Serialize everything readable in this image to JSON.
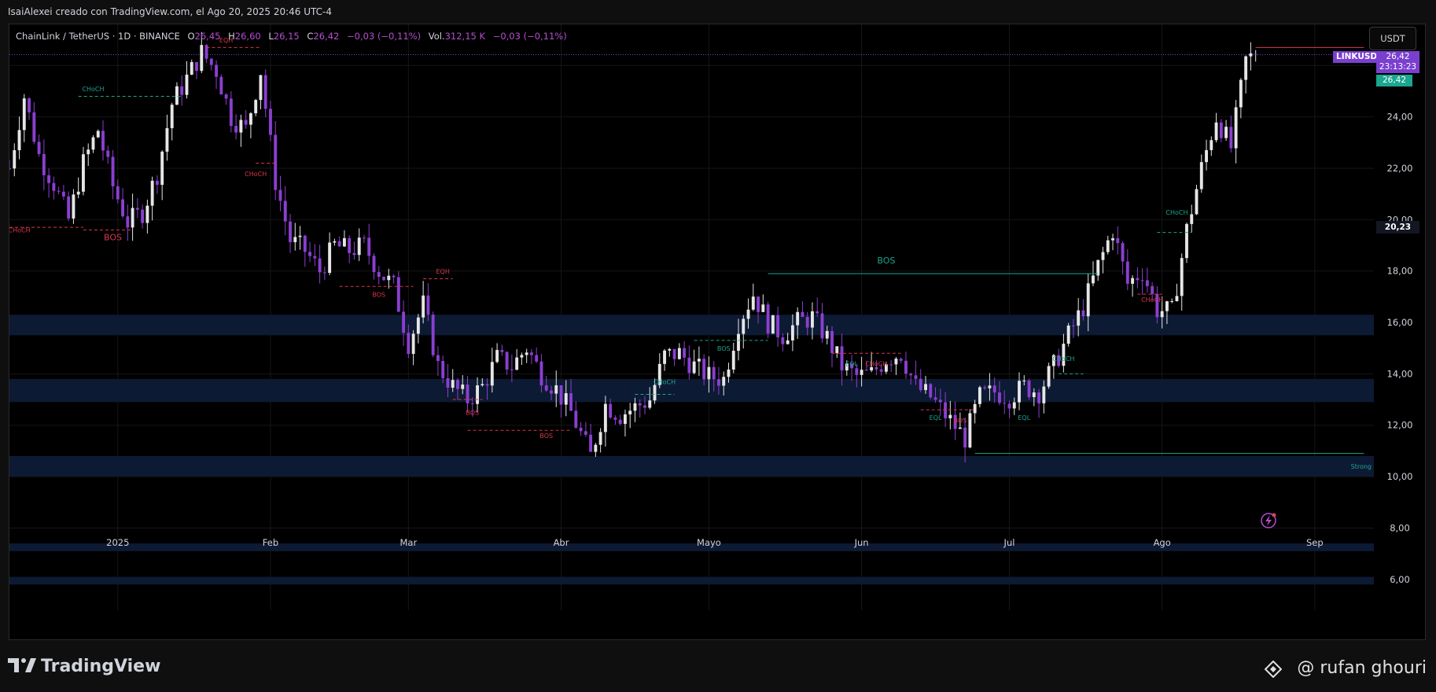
{
  "header": {
    "attribution": "IsaiAlexei creado con TradingView.com, el Ago 20, 2025 20:46 UTC-4"
  },
  "legend": {
    "symbol": "ChainLink / TetherUS · 1D · BINANCE",
    "open_label": "O",
    "open": "26,45",
    "high_label": "H",
    "high": "26,60",
    "low_label": "L",
    "low": "26,15",
    "close_label": "C",
    "close": "26,42",
    "change": "−0,03 (−0,11%)",
    "vol_label": "Vol.",
    "vol": "312,15 K",
    "vol_change": "−0,03 (−0,11%)"
  },
  "currency_button": "USDT",
  "price_scale": {
    "ticker": "LINKUSDT",
    "last_price": "26,42",
    "countdown": "23:13:23",
    "current": "26,42",
    "marker": "20,23"
  },
  "footer": {
    "brand": "TradingView",
    "credit": "@ rufan ghouri"
  },
  "colors": {
    "bull": "#e6e6e6",
    "bear": "#8a3fd1",
    "zone": "#0d1a33",
    "bos_green": "#1aa68f",
    "bos_red": "#d9364a"
  },
  "chart_data": {
    "type": "candlestick",
    "title": "ChainLink / TetherUS · 1D · BINANCE",
    "ylim": [
      4.8,
      27.6
    ],
    "y_ticks": [
      6,
      8,
      10,
      12,
      14,
      16,
      18,
      20,
      22,
      24,
      26
    ],
    "y_tick_labels": [
      "6,00",
      "8,00",
      "10,00",
      "12,00",
      "14,00",
      "16,00",
      "18,00",
      "20,00",
      "22,00",
      "24,00",
      "26,00"
    ],
    "x_start": "2024-12-10",
    "x_end": "2025-09-13",
    "x_ticks": [
      {
        "date": "2025-01-01",
        "label": "2025"
      },
      {
        "date": "2025-02-01",
        "label": "Feb"
      },
      {
        "date": "2025-03-01",
        "label": "Mar"
      },
      {
        "date": "2025-04-01",
        "label": "Abr"
      },
      {
        "date": "2025-05-01",
        "label": "Mayo"
      },
      {
        "date": "2025-06-01",
        "label": "Jun"
      },
      {
        "date": "2025-07-01",
        "label": "Jul"
      },
      {
        "date": "2025-08-01",
        "label": "Ago"
      },
      {
        "date": "2025-09-01",
        "label": "Sep"
      }
    ],
    "series_close_path": [
      [
        "2024-12-10",
        22.0
      ],
      [
        "2024-12-13",
        24.8
      ],
      [
        "2024-12-16",
        22.5
      ],
      [
        "2024-12-19",
        21.4
      ],
      [
        "2024-12-22",
        20.0
      ],
      [
        "2024-12-25",
        22.2
      ],
      [
        "2024-12-28",
        23.5
      ],
      [
        "2024-12-31",
        21.3
      ],
      [
        "2025-01-03",
        19.9
      ],
      [
        "2025-01-06",
        20.3
      ],
      [
        "2025-01-09",
        21.8
      ],
      [
        "2025-01-12",
        24.5
      ],
      [
        "2025-01-15",
        25.5
      ],
      [
        "2025-01-18",
        26.5
      ],
      [
        "2025-01-21",
        25.8
      ],
      [
        "2025-01-24",
        24.0
      ],
      [
        "2025-01-27",
        23.5
      ],
      [
        "2025-01-30",
        25.8
      ],
      [
        "2025-02-02",
        21.5
      ],
      [
        "2025-02-05",
        19.2
      ],
      [
        "2025-02-08",
        18.8
      ],
      [
        "2025-02-11",
        18.0
      ],
      [
        "2025-02-14",
        19.0
      ],
      [
        "2025-02-17",
        18.8
      ],
      [
        "2025-02-20",
        19.0
      ],
      [
        "2025-02-23",
        18.0
      ],
      [
        "2025-02-26",
        17.4
      ],
      [
        "2025-03-01",
        15.2
      ],
      [
        "2025-03-04",
        16.7
      ],
      [
        "2025-03-07",
        14.3
      ],
      [
        "2025-03-10",
        13.5
      ],
      [
        "2025-03-13",
        13.0
      ],
      [
        "2025-03-16",
        13.5
      ],
      [
        "2025-03-19",
        14.6
      ],
      [
        "2025-03-22",
        14.3
      ],
      [
        "2025-03-25",
        15.0
      ],
      [
        "2025-03-28",
        14.0
      ],
      [
        "2025-03-31",
        13.4
      ],
      [
        "2025-04-03",
        12.5
      ],
      [
        "2025-04-07",
        10.8
      ],
      [
        "2025-04-10",
        12.8
      ],
      [
        "2025-04-13",
        12.4
      ],
      [
        "2025-04-16",
        12.7
      ],
      [
        "2025-04-19",
        13.0
      ],
      [
        "2025-04-22",
        14.7
      ],
      [
        "2025-04-25",
        14.8
      ],
      [
        "2025-04-28",
        14.3
      ],
      [
        "2025-05-01",
        13.9
      ],
      [
        "2025-05-04",
        13.8
      ],
      [
        "2025-05-07",
        16.0
      ],
      [
        "2025-05-10",
        17.1
      ],
      [
        "2025-05-13",
        16.0
      ],
      [
        "2025-05-16",
        15.5
      ],
      [
        "2025-05-19",
        16.0
      ],
      [
        "2025-05-22",
        16.2
      ],
      [
        "2025-05-25",
        15.4
      ],
      [
        "2025-05-28",
        14.3
      ],
      [
        "2025-05-31",
        13.9
      ],
      [
        "2025-06-03",
        14.0
      ],
      [
        "2025-06-06",
        14.6
      ],
      [
        "2025-06-09",
        14.8
      ],
      [
        "2025-06-12",
        13.5
      ],
      [
        "2025-06-15",
        13.1
      ],
      [
        "2025-06-18",
        12.4
      ],
      [
        "2025-06-22",
        11.5
      ],
      [
        "2025-06-25",
        13.1
      ],
      [
        "2025-06-28",
        13.3
      ],
      [
        "2025-07-01",
        13.1
      ],
      [
        "2025-07-04",
        13.5
      ],
      [
        "2025-07-07",
        13.3
      ],
      [
        "2025-07-10",
        14.3
      ],
      [
        "2025-07-13",
        15.5
      ],
      [
        "2025-07-16",
        16.6
      ],
      [
        "2025-07-19",
        18.2
      ],
      [
        "2025-07-22",
        19.6
      ],
      [
        "2025-07-25",
        17.5
      ],
      [
        "2025-07-28",
        18.0
      ],
      [
        "2025-07-31",
        16.5
      ],
      [
        "2025-08-03",
        16.4
      ],
      [
        "2025-08-06",
        19.6
      ],
      [
        "2025-08-09",
        22.0
      ],
      [
        "2025-08-12",
        24.0
      ],
      [
        "2025-08-15",
        22.8
      ],
      [
        "2025-08-18",
        26.2
      ],
      [
        "2025-08-20",
        26.42
      ]
    ],
    "demand_zones": [
      {
        "from": 10.0,
        "to": 10.8,
        "label": "Strong"
      },
      {
        "from": 12.9,
        "to": 13.8,
        "label": ""
      },
      {
        "from": 15.5,
        "to": 16.3,
        "label": ""
      },
      {
        "from": 7.1,
        "to": 7.4,
        "label": ""
      },
      {
        "from": 5.8,
        "to": 6.1,
        "label": ""
      }
    ],
    "annotations": [
      {
        "text": "EQH",
        "date": "2025-01-23",
        "price": 26.9,
        "color": "red"
      },
      {
        "text": "CHoCH",
        "date": "2024-12-27",
        "price": 25.0,
        "color": "green"
      },
      {
        "text": "CHoCH",
        "date": "2024-12-12",
        "price": 19.5,
        "color": "red"
      },
      {
        "text": "BOS",
        "date": "2024-12-31",
        "price": 19.2,
        "color": "red"
      },
      {
        "text": "CHoCH",
        "date": "2025-01-29",
        "price": 21.7,
        "color": "red"
      },
      {
        "text": "BOS",
        "date": "2025-02-23",
        "price": 17.0,
        "color": "red"
      },
      {
        "text": "EQH",
        "date": "2025-03-08",
        "price": 17.9,
        "color": "red"
      },
      {
        "text": "BOS",
        "date": "2025-03-14",
        "price": 12.4,
        "color": "red"
      },
      {
        "text": "BOS",
        "date": "2025-03-29",
        "price": 11.5,
        "color": "red"
      },
      {
        "text": "CHoCH",
        "date": "2025-04-22",
        "price": 13.6,
        "color": "green"
      },
      {
        "text": "BOS",
        "date": "2025-05-04",
        "price": 14.9,
        "color": "green"
      },
      {
        "text": "BOS",
        "date": "2025-06-06",
        "price": 18.3,
        "color": "green"
      },
      {
        "text": "EQL",
        "date": "2025-05-30",
        "price": 14.3,
        "color": "green"
      },
      {
        "text": "CHoCH",
        "date": "2025-06-04",
        "price": 14.3,
        "color": "red"
      },
      {
        "text": "EQL",
        "date": "2025-06-16",
        "price": 12.2,
        "color": "green"
      },
      {
        "text": "BOS",
        "date": "2025-06-21",
        "price": 12.1,
        "color": "red"
      },
      {
        "text": "EQL",
        "date": "2025-07-04",
        "price": 12.2,
        "color": "green"
      },
      {
        "text": "CHoCH",
        "date": "2025-07-12",
        "price": 14.5,
        "color": "green"
      },
      {
        "text": "CHoCH",
        "date": "2025-08-04",
        "price": 20.2,
        "color": "green"
      },
      {
        "text": "CHoCH",
        "date": "2025-07-30",
        "price": 16.8,
        "color": "red"
      }
    ],
    "levels": [
      {
        "price": 24.8,
        "from": "2024-12-24",
        "to": "2025-01-14",
        "color": "green"
      },
      {
        "price": 19.7,
        "from": "2024-12-10",
        "to": "2024-12-25",
        "color": "red"
      },
      {
        "price": 19.6,
        "from": "2024-12-25",
        "to": "2025-01-04",
        "color": "red"
      },
      {
        "price": 26.7,
        "from": "2025-01-19",
        "to": "2025-01-30",
        "color": "red"
      },
      {
        "price": 22.2,
        "from": "2025-01-29",
        "to": "2025-02-02",
        "color": "red"
      },
      {
        "price": 17.4,
        "from": "2025-02-15",
        "to": "2025-03-02",
        "color": "red"
      },
      {
        "price": 17.7,
        "from": "2025-03-04",
        "to": "2025-03-10",
        "color": "red"
      },
      {
        "price": 13.0,
        "from": "2025-03-10",
        "to": "2025-03-16",
        "color": "red"
      },
      {
        "price": 11.8,
        "from": "2025-03-13",
        "to": "2025-04-03",
        "color": "red"
      },
      {
        "price": 13.2,
        "from": "2025-04-16",
        "to": "2025-04-24",
        "color": "green"
      },
      {
        "price": 15.3,
        "from": "2025-04-28",
        "to": "2025-05-13",
        "color": "green"
      },
      {
        "price": 17.9,
        "from": "2025-05-13",
        "to": "2025-07-19",
        "color": "green"
      },
      {
        "price": 14.8,
        "from": "2025-05-26",
        "to": "2025-06-09",
        "color": "red"
      },
      {
        "price": 12.6,
        "from": "2025-06-13",
        "to": "2025-06-24",
        "color": "red"
      },
      {
        "price": 14.0,
        "from": "2025-07-11",
        "to": "2025-07-16",
        "color": "green"
      },
      {
        "price": 19.5,
        "from": "2025-07-31",
        "to": "2025-08-07",
        "color": "green"
      },
      {
        "price": 17.1,
        "from": "2025-07-27",
        "to": "2025-08-01",
        "color": "red"
      },
      {
        "price": 26.7,
        "from": "2025-08-20",
        "to": "2025-09-11",
        "color": "red"
      },
      {
        "price": 10.9,
        "from": "2025-06-24",
        "to": "2025-09-11",
        "color": "green"
      }
    ],
    "current_price": 26.42,
    "grid": true,
    "legend_placement": "top-left"
  }
}
